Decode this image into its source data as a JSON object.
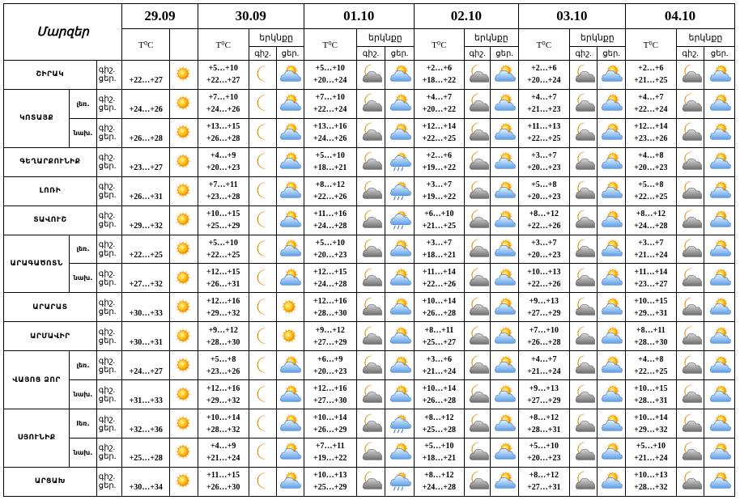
{
  "header": {
    "region_label": "Մարզեր",
    "temp_unit": "T⁰C",
    "sky_label": "երկնքը",
    "night_short": "գիշ.",
    "day_short": "ցեր."
  },
  "dates": [
    "29.09",
    "30.09",
    "01.10",
    "02.10",
    "03.10",
    "04.10"
  ],
  "icon_types": {
    "sun": "sun-icon",
    "moon": "crescent-moon-icon",
    "sun_cloud": "partly-cloudy-day-icon",
    "moon_cloud": "partly-cloudy-night-icon",
    "sun_rain": "sun-cloud-rain-icon"
  },
  "rows": [
    {
      "region": "ՇԻՐԱԿ",
      "sub": null,
      "span": 1,
      "t1": "+22…+27",
      "days": [
        {
          "n": "+5…+10",
          "d": "+22…+27",
          "in": "moon",
          "id": "sun_cloud"
        },
        {
          "n": "+5…+10",
          "d": "+20…+24",
          "in": "moon_cloud",
          "id": "sun_cloud"
        },
        {
          "n": "+2…+6",
          "d": "+18…+22",
          "in": "moon_cloud",
          "id": "sun_cloud"
        },
        {
          "n": "+2…+6",
          "d": "+20…+24",
          "in": "moon_cloud",
          "id": "sun_cloud"
        },
        {
          "n": "+2…+6",
          "d": "+21…+25",
          "in": "moon_cloud",
          "id": "sun_cloud"
        }
      ]
    },
    {
      "region": "ԿՈՏԱՅՔ",
      "sub": "լեռ.",
      "span": 2,
      "t1": "+24…+26",
      "days": [
        {
          "n": "+7…+10",
          "d": "+24…+26",
          "in": "moon",
          "id": "sun_cloud"
        },
        {
          "n": "+7…+10",
          "d": "+22…+24",
          "in": "moon_cloud",
          "id": "sun_cloud"
        },
        {
          "n": "+4…+7",
          "d": "+20…+22",
          "in": "moon_cloud",
          "id": "sun_cloud"
        },
        {
          "n": "+4…+7",
          "d": "+21…+23",
          "in": "moon_cloud",
          "id": "sun_cloud"
        },
        {
          "n": "+4…+7",
          "d": "+22…+24",
          "in": "moon_cloud",
          "id": "sun_cloud"
        }
      ]
    },
    {
      "region": null,
      "sub": "նախ.",
      "span": 0,
      "t1": "+26…+28",
      "days": [
        {
          "n": "+13…+15",
          "d": "+26…+28",
          "in": "moon",
          "id": "sun_cloud"
        },
        {
          "n": "+13…+16",
          "d": "+24…+26",
          "in": "moon_cloud",
          "id": "sun_cloud"
        },
        {
          "n": "+12…+14",
          "d": "+22…+25",
          "in": "moon_cloud",
          "id": "sun_cloud"
        },
        {
          "n": "+11…+13",
          "d": "+22…+25",
          "in": "moon_cloud",
          "id": "sun_cloud"
        },
        {
          "n": "+12…+14",
          "d": "+23…+26",
          "in": "moon_cloud",
          "id": "sun_cloud"
        }
      ]
    },
    {
      "region": "ԳԵՂԱՐՔՈՒՆԻՔ",
      "sub": null,
      "span": 1,
      "t1": "+23…+27",
      "days": [
        {
          "n": "+4…+9",
          "d": "+20…+23",
          "in": "moon",
          "id": "sun_cloud"
        },
        {
          "n": "+5…+10",
          "d": "+18…+21",
          "in": "moon_cloud",
          "id": "sun_rain"
        },
        {
          "n": "+2…+6",
          "d": "+19…+22",
          "in": "moon_cloud",
          "id": "sun_cloud"
        },
        {
          "n": "+3…+7",
          "d": "+20…+23",
          "in": "moon_cloud",
          "id": "sun_cloud"
        },
        {
          "n": "+4…+8",
          "d": "+20…+23",
          "in": "moon_cloud",
          "id": "sun_cloud"
        }
      ]
    },
    {
      "region": "ԼՈՌԻ",
      "sub": null,
      "span": 1,
      "t1": "+26…+31",
      "days": [
        {
          "n": "+7…+11",
          "d": "+23…+28",
          "in": "moon",
          "id": "sun_cloud"
        },
        {
          "n": "+8…+12",
          "d": "+22…+26",
          "in": "moon_cloud",
          "id": "sun_rain"
        },
        {
          "n": "+3…+7",
          "d": "+19…+22",
          "in": "moon_cloud",
          "id": "sun_cloud"
        },
        {
          "n": "+5…+8",
          "d": "+20…+23",
          "in": "moon_cloud",
          "id": "sun_cloud"
        },
        {
          "n": "+5…+8",
          "d": "+22…+25",
          "in": "moon_cloud",
          "id": "sun_cloud"
        }
      ]
    },
    {
      "region": "ՏԱՎՈՒՇ",
      "sub": null,
      "span": 1,
      "t1": "+29…+32",
      "days": [
        {
          "n": "+10…+15",
          "d": "+25…+29",
          "in": "moon",
          "id": "sun_cloud"
        },
        {
          "n": "+11…+16",
          "d": "+24…+28",
          "in": "moon_cloud",
          "id": "sun_rain"
        },
        {
          "n": "+6…+10",
          "d": "+21…+25",
          "in": "moon_cloud",
          "id": "sun_cloud"
        },
        {
          "n": "+8…+12",
          "d": "+22…+26",
          "in": "moon_cloud",
          "id": "sun_cloud"
        },
        {
          "n": "+8…+12",
          "d": "+24…+28",
          "in": "moon_cloud",
          "id": "sun_cloud"
        }
      ]
    },
    {
      "region": "ԱՐԱԳԱԾՈՏՆ",
      "sub": "լեռ.",
      "span": 2,
      "t1": "+22…+25",
      "days": [
        {
          "n": "+5…+10",
          "d": "+22…+25",
          "in": "moon",
          "id": "sun_cloud"
        },
        {
          "n": "+5…+10",
          "d": "+20…+23",
          "in": "moon_cloud",
          "id": "sun_cloud"
        },
        {
          "n": "+3…+7",
          "d": "+18…+21",
          "in": "moon_cloud",
          "id": "sun_cloud"
        },
        {
          "n": "+3…+7",
          "d": "+20…+23",
          "in": "moon_cloud",
          "id": "sun_cloud"
        },
        {
          "n": "+3…+7",
          "d": "+21…+24",
          "in": "moon_cloud",
          "id": "sun_cloud"
        }
      ]
    },
    {
      "region": null,
      "sub": "նախ.",
      "span": 0,
      "t1": "+27…+32",
      "days": [
        {
          "n": "+12…+15",
          "d": "+26…+31",
          "in": "moon",
          "id": "sun_cloud"
        },
        {
          "n": "+12…+15",
          "d": "+24…+28",
          "in": "moon_cloud",
          "id": "sun_cloud"
        },
        {
          "n": "+11…+14",
          "d": "+22…+26",
          "in": "moon_cloud",
          "id": "sun_cloud"
        },
        {
          "n": "+10…+13",
          "d": "+22…+26",
          "in": "moon_cloud",
          "id": "sun_cloud"
        },
        {
          "n": "+11…+14",
          "d": "+23…+27",
          "in": "moon_cloud",
          "id": "sun_cloud"
        }
      ]
    },
    {
      "region": "ԱՐԱՐԱՏ",
      "sub": null,
      "span": 1,
      "t1": "+30…+33",
      "days": [
        {
          "n": "+12…+16",
          "d": "+29…+32",
          "in": "moon",
          "id": "sun"
        },
        {
          "n": "+12…+16",
          "d": "+28…+30",
          "in": "moon_cloud",
          "id": "sun_cloud"
        },
        {
          "n": "+10…+14",
          "d": "+26…+28",
          "in": "moon_cloud",
          "id": "sun_cloud"
        },
        {
          "n": "+9…+13",
          "d": "+27…+29",
          "in": "moon_cloud",
          "id": "sun_cloud"
        },
        {
          "n": "+10…+15",
          "d": "+29…+31",
          "in": "moon_cloud",
          "id": "sun_cloud"
        }
      ]
    },
    {
      "region": "ԱՐՄԱՎԻՐ",
      "sub": null,
      "span": 1,
      "t1": "+30…+31",
      "days": [
        {
          "n": "+9…+12",
          "d": "+28…+30",
          "in": "moon",
          "id": "sun"
        },
        {
          "n": "+9…+12",
          "d": "+27…+29",
          "in": "moon_cloud",
          "id": "sun_cloud"
        },
        {
          "n": "+8…+11",
          "d": "+25…+27",
          "in": "moon_cloud",
          "id": "sun_cloud"
        },
        {
          "n": "+7…+10",
          "d": "+26…+28",
          "in": "moon_cloud",
          "id": "sun_cloud"
        },
        {
          "n": "+8…+11",
          "d": "+28…+30",
          "in": "moon_cloud",
          "id": "sun_cloud"
        }
      ]
    },
    {
      "region": "ՎԱՅՈՑ ՁՈՐ",
      "sub": "լեռ.",
      "span": 2,
      "t1": "+24…+27",
      "days": [
        {
          "n": "+5…+8",
          "d": "+23…+26",
          "in": "moon",
          "id": "sun_cloud"
        },
        {
          "n": "+6…+9",
          "d": "+20…+23",
          "in": "moon_cloud",
          "id": "sun_cloud"
        },
        {
          "n": "+3…+6",
          "d": "+21…+24",
          "in": "moon_cloud",
          "id": "sun_cloud"
        },
        {
          "n": "+4…+7",
          "d": "+21…+24",
          "in": "moon_cloud",
          "id": "sun_cloud"
        },
        {
          "n": "+4…+8",
          "d": "+22…+25",
          "in": "moon_cloud",
          "id": "sun_cloud"
        }
      ]
    },
    {
      "region": null,
      "sub": "նախ.",
      "span": 0,
      "t1": "+31…+33",
      "days": [
        {
          "n": "+12…+16",
          "d": "+29…+32",
          "in": "moon",
          "id": "sun_cloud"
        },
        {
          "n": "+12…+16",
          "d": "+27…+30",
          "in": "moon_cloud",
          "id": "sun_cloud"
        },
        {
          "n": "+10…+14",
          "d": "+26…+28",
          "in": "moon_cloud",
          "id": "sun_cloud"
        },
        {
          "n": "+9…+13",
          "d": "+27…+29",
          "in": "moon_cloud",
          "id": "sun_cloud"
        },
        {
          "n": "+10…+15",
          "d": "+28…+31",
          "in": "moon_cloud",
          "id": "sun_cloud"
        }
      ]
    },
    {
      "region": "ՍՅՈՒՆԻՔ",
      "sub": "lեռ.",
      "span": 2,
      "t1": "+32…+36",
      "days": [
        {
          "n": "+10…+14",
          "d": "+28…+32",
          "in": "moon",
          "id": "sun_cloud"
        },
        {
          "n": "+10…+14",
          "d": "+26…+29",
          "in": "moon_cloud",
          "id": "sun_rain"
        },
        {
          "n": "+8…+12",
          "d": "+25…+28",
          "in": "moon_cloud",
          "id": "sun_cloud"
        },
        {
          "n": "+8…+12",
          "d": "+28…+31",
          "in": "moon_cloud",
          "id": "sun_cloud"
        },
        {
          "n": "+10…+14",
          "d": "+29…+32",
          "in": "moon_cloud",
          "id": "sun_cloud"
        }
      ]
    },
    {
      "region": null,
      "sub": "նախ.",
      "span": 0,
      "t1": "+25…+28",
      "days": [
        {
          "n": "+4…+9",
          "d": "+21…+24",
          "in": "moon",
          "id": "sun_cloud"
        },
        {
          "n": "+7…+11",
          "d": "+19…+22",
          "in": "moon_cloud",
          "id": "sun_cloud"
        },
        {
          "n": "+5…+10",
          "d": "+18…+21",
          "in": "moon_cloud",
          "id": "sun_cloud"
        },
        {
          "n": "+5…+10",
          "d": "+20…+23",
          "in": "moon_cloud",
          "id": "sun_cloud"
        },
        {
          "n": "+5…+10",
          "d": "+21…+24",
          "in": "moon_cloud",
          "id": "sun_cloud"
        }
      ]
    },
    {
      "region": "ԱՐՑԱԽ",
      "sub": null,
      "span": 1,
      "t1": "+30…+34",
      "days": [
        {
          "n": "+11…+15",
          "d": "+26…+30",
          "in": "moon",
          "id": "sun_cloud"
        },
        {
          "n": "+10…+13",
          "d": "+25…+29",
          "in": "moon_cloud",
          "id": "sun_rain"
        },
        {
          "n": "+8…+12",
          "d": "+24…+28",
          "in": "moon_cloud",
          "id": "sun_cloud"
        },
        {
          "n": "+8…+12",
          "d": "+27…+31",
          "in": "moon_cloud",
          "id": "sun_cloud"
        },
        {
          "n": "+10…+13",
          "d": "+28…+32",
          "in": "moon_cloud",
          "id": "sun_cloud"
        }
      ]
    }
  ]
}
